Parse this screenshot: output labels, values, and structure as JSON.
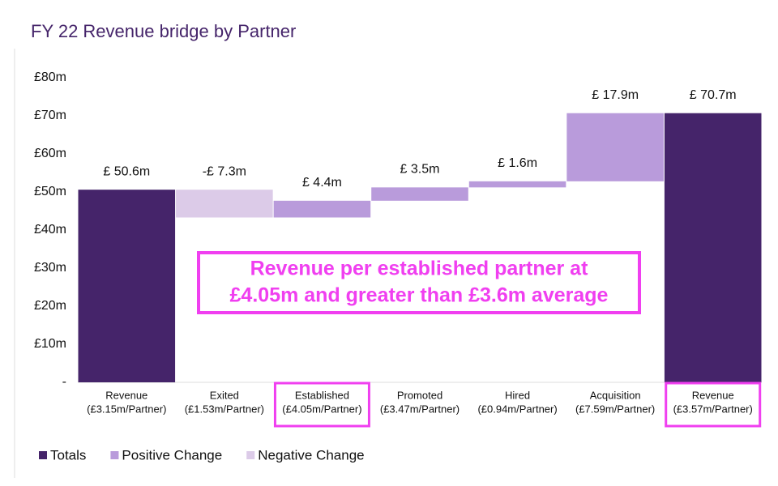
{
  "chart_data": {
    "type": "waterfall",
    "title": "FY 22 Revenue bridge by Partner",
    "categories": [
      "Revenue",
      "Exited",
      "Established",
      "Promoted",
      "Hired",
      "Acquisition",
      "Revenue"
    ],
    "sublabels": [
      "(£3.15m/Partner)",
      "(£1.53m/Partner)",
      "(£4.05m/Partner)",
      "(£3.47m/Partner)",
      "(£0.94m/Partner)",
      "(£7.59m/Partner)",
      "(£3.57m/Partner)"
    ],
    "series": [
      {
        "name": "Totals",
        "color": "#45246a",
        "total": true,
        "values": [
          50.6,
          null,
          null,
          null,
          null,
          null,
          70.7
        ],
        "value_labels": [
          "£ 50.6m",
          null,
          null,
          null,
          null,
          null,
          "£ 70.7m"
        ]
      },
      {
        "name": "Positive Change",
        "color": "#b99bdb",
        "values": [
          null,
          null,
          4.4,
          3.5,
          1.6,
          17.9,
          null
        ],
        "value_labels": [
          null,
          null,
          "£ 4.4m",
          "£ 3.5m",
          "£ 1.6m",
          "£ 17.9m",
          null
        ]
      },
      {
        "name": "Negative Change",
        "color": "#dccbe8",
        "values": [
          null,
          -7.3,
          null,
          null,
          null,
          null,
          null
        ],
        "value_labels": [
          null,
          "-£ 7.3m",
          null,
          null,
          null,
          null,
          null
        ]
      }
    ],
    "ylim": [
      0,
      80
    ],
    "yticks": [
      {
        "value": 0,
        "label": "-"
      },
      {
        "value": 10,
        "label": "£10m"
      },
      {
        "value": 20,
        "label": "£20m"
      },
      {
        "value": 30,
        "label": "£30m"
      },
      {
        "value": 40,
        "label": "£40m"
      },
      {
        "value": 50,
        "label": "£50m"
      },
      {
        "value": 60,
        "label": "£60m"
      },
      {
        "value": 70,
        "label": "£70m"
      },
      {
        "value": 80,
        "label": "£80m"
      }
    ],
    "annotation": [
      "Revenue per established partner at",
      "£4.05m and greater than £3.6m average"
    ],
    "highlight": [
      2,
      6
    ],
    "highlight_color": "#f03ff0"
  }
}
